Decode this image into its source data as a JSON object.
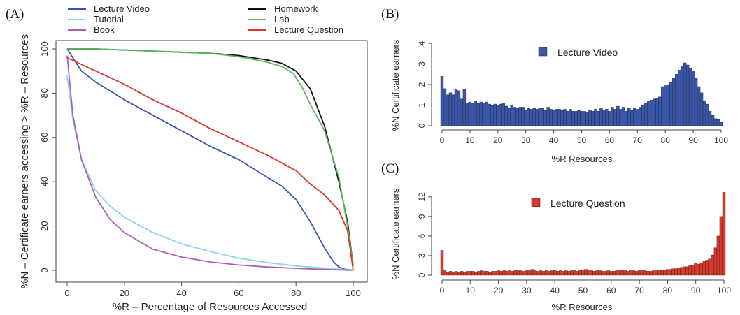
{
  "chart_data": [
    {
      "panel": "(A)",
      "type": "line",
      "xlabel": "%R – Percentage of Resources Accessed",
      "ylabel": "%N – Certificate earners accessing > %R – Resources",
      "xlim": [
        0,
        100
      ],
      "ylim": [
        0,
        100
      ],
      "xticks": [
        0,
        20,
        40,
        60,
        80,
        100
      ],
      "yticks": [
        0,
        20,
        40,
        60,
        80,
        100
      ],
      "legend_position": "top",
      "series": [
        {
          "name": "Lecture Video",
          "color": "#3a56a8",
          "x": [
            0,
            5,
            10,
            20,
            30,
            40,
            50,
            60,
            70,
            75,
            80,
            85,
            90,
            93,
            95,
            97,
            100
          ],
          "y": [
            100,
            90,
            85,
            77,
            70,
            63,
            56,
            50,
            42,
            38,
            32,
            22,
            10,
            4,
            1.5,
            0.5,
            0
          ]
        },
        {
          "name": "Tutorial",
          "color": "#8fd3ec",
          "x": [
            0,
            2,
            5,
            10,
            15,
            20,
            30,
            40,
            50,
            60,
            70,
            80,
            90,
            100
          ],
          "y": [
            88,
            68,
            50,
            36,
            29,
            24,
            17,
            12,
            8.5,
            5.5,
            3.5,
            2,
            1,
            0
          ]
        },
        {
          "name": "Book",
          "color": "#b05bb8",
          "x": [
            0,
            2,
            5,
            10,
            15,
            20,
            30,
            40,
            50,
            60,
            70,
            80,
            90,
            100
          ],
          "y": [
            97,
            70,
            50,
            33,
            23,
            17,
            9.5,
            6,
            3.8,
            2.4,
            1.5,
            0.9,
            0.4,
            0
          ]
        },
        {
          "name": "Homework",
          "color": "#111111",
          "x": [
            0,
            10,
            20,
            30,
            40,
            50,
            60,
            70,
            75,
            80,
            85,
            90,
            95,
            98,
            100
          ],
          "y": [
            100,
            100,
            99.5,
            99,
            98.5,
            98,
            97,
            95,
            93.5,
            90,
            82,
            65,
            40,
            22,
            2
          ]
        },
        {
          "name": "Lab",
          "color": "#5cb85c",
          "x": [
            0,
            10,
            20,
            30,
            40,
            50,
            60,
            70,
            75,
            79,
            82,
            85,
            90,
            95,
            98,
            100
          ],
          "y": [
            100,
            100,
            99.5,
            99,
            98.5,
            98,
            96.5,
            94,
            92,
            89,
            83,
            75,
            63,
            42,
            20,
            2
          ]
        },
        {
          "name": "Lecture Question",
          "color": "#d9382b",
          "x": [
            0,
            10,
            20,
            30,
            40,
            50,
            60,
            70,
            80,
            85,
            90,
            95,
            98,
            100
          ],
          "y": [
            96,
            90,
            84,
            77,
            71,
            64,
            58,
            52,
            45,
            39,
            34,
            27,
            18,
            0
          ]
        }
      ]
    },
    {
      "panel": "(B)",
      "type": "bar",
      "legend": "Lecture Video",
      "legend_position": "top-center",
      "color": "#3a56a8",
      "xlabel": "%R Resources",
      "ylabel": "%N Certificate earners",
      "xlim": [
        0,
        100
      ],
      "ylim": [
        0,
        4
      ],
      "xticks": [
        0,
        10,
        20,
        30,
        40,
        50,
        60,
        70,
        80,
        90,
        100
      ],
      "yticks": [
        0,
        1,
        2,
        3,
        4
      ],
      "x": [
        0,
        1,
        2,
        3,
        4,
        5,
        6,
        7,
        8,
        9,
        10,
        11,
        12,
        13,
        14,
        15,
        16,
        17,
        18,
        19,
        20,
        21,
        22,
        23,
        24,
        25,
        26,
        27,
        28,
        29,
        30,
        31,
        32,
        33,
        34,
        35,
        36,
        37,
        38,
        39,
        40,
        41,
        42,
        43,
        44,
        45,
        46,
        47,
        48,
        49,
        50,
        51,
        52,
        53,
        54,
        55,
        56,
        57,
        58,
        59,
        60,
        61,
        62,
        63,
        64,
        65,
        66,
        67,
        68,
        69,
        70,
        71,
        72,
        73,
        74,
        75,
        76,
        77,
        78,
        79,
        80,
        81,
        82,
        83,
        84,
        85,
        86,
        87,
        88,
        89,
        90,
        91,
        92,
        93,
        94,
        95,
        96,
        97,
        98,
        99,
        100
      ],
      "values": [
        2.4,
        1.8,
        1.5,
        1.6,
        1.5,
        1.75,
        1.7,
        1.3,
        1.75,
        1.1,
        1.15,
        1.1,
        1.2,
        1.1,
        1.15,
        1.1,
        1.15,
        1.05,
        1.0,
        1.05,
        1.0,
        1.05,
        1.1,
        0.95,
        0.85,
        1.0,
        0.9,
        0.85,
        0.9,
        0.9,
        0.75,
        0.85,
        0.8,
        0.85,
        0.8,
        0.85,
        0.85,
        0.75,
        0.9,
        0.8,
        0.75,
        0.8,
        0.8,
        0.75,
        0.8,
        0.7,
        0.8,
        0.7,
        0.7,
        0.75,
        0.7,
        0.7,
        0.65,
        0.75,
        0.7,
        0.8,
        0.7,
        0.85,
        0.75,
        0.8,
        0.7,
        0.9,
        0.8,
        0.95,
        0.8,
        0.9,
        0.7,
        0.85,
        0.75,
        0.85,
        0.8,
        0.9,
        1.0,
        1.1,
        1.2,
        1.25,
        1.3,
        1.35,
        1.4,
        1.9,
        1.95,
        2.0,
        2.1,
        2.3,
        2.5,
        2.7,
        2.9,
        3.05,
        2.95,
        2.8,
        2.65,
        2.3,
        1.9,
        1.6,
        1.2,
        1.05,
        0.7,
        0.5,
        0.35,
        0.3,
        0.2
      ]
    },
    {
      "panel": "(C)",
      "type": "bar",
      "legend": "Lecture Question",
      "legend_position": "top-center",
      "color": "#d9382b",
      "xlabel": "%R Resources",
      "ylabel": "%N Certificate earners",
      "xlim": [
        0,
        100
      ],
      "ylim": [
        0,
        13
      ],
      "xticks": [
        0,
        10,
        20,
        30,
        40,
        50,
        60,
        70,
        80,
        90,
        100
      ],
      "yticks": [
        0,
        3,
        6,
        9,
        12
      ],
      "x": [
        0,
        1,
        2,
        3,
        4,
        5,
        6,
        7,
        8,
        9,
        10,
        11,
        12,
        13,
        14,
        15,
        16,
        17,
        18,
        19,
        20,
        21,
        22,
        23,
        24,
        25,
        26,
        27,
        28,
        29,
        30,
        31,
        32,
        33,
        34,
        35,
        36,
        37,
        38,
        39,
        40,
        41,
        42,
        43,
        44,
        45,
        46,
        47,
        48,
        49,
        50,
        51,
        52,
        53,
        54,
        55,
        56,
        57,
        58,
        59,
        60,
        61,
        62,
        63,
        64,
        65,
        66,
        67,
        68,
        69,
        70,
        71,
        72,
        73,
        74,
        75,
        76,
        77,
        78,
        79,
        80,
        81,
        82,
        83,
        84,
        85,
        86,
        87,
        88,
        89,
        90,
        91,
        92,
        93,
        94,
        95,
        96,
        97,
        98,
        99,
        100
      ],
      "values": [
        3.8,
        0.7,
        0.5,
        0.6,
        0.5,
        0.6,
        0.5,
        0.6,
        0.5,
        0.6,
        0.6,
        0.6,
        0.5,
        0.6,
        0.7,
        0.6,
        0.6,
        0.5,
        0.6,
        0.6,
        0.7,
        0.6,
        0.7,
        0.6,
        0.7,
        0.6,
        0.8,
        0.7,
        0.7,
        0.6,
        0.7,
        0.7,
        0.9,
        0.7,
        0.6,
        0.7,
        0.6,
        0.7,
        0.6,
        0.7,
        0.7,
        0.6,
        0.7,
        0.6,
        0.7,
        0.6,
        0.7,
        0.7,
        0.6,
        0.8,
        0.7,
        0.9,
        0.7,
        0.7,
        0.6,
        0.7,
        0.7,
        0.6,
        0.6,
        0.7,
        0.6,
        0.6,
        0.7,
        0.7,
        0.8,
        0.7,
        0.6,
        0.7,
        0.7,
        0.6,
        0.8,
        0.7,
        0.7,
        0.6,
        0.6,
        0.7,
        0.7,
        0.7,
        0.8,
        0.8,
        0.9,
        0.9,
        1.0,
        1.0,
        1.1,
        1.2,
        1.3,
        1.3,
        1.5,
        1.6,
        1.8,
        1.7,
        1.9,
        2.2,
        2.3,
        2.5,
        3.1,
        4.2,
        6.0,
        9.0,
        12.7
      ]
    }
  ]
}
